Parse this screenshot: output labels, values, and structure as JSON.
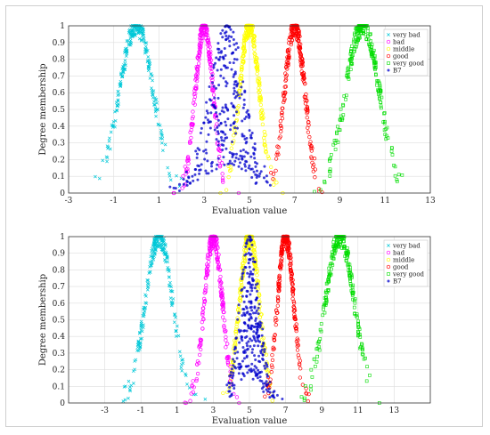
{
  "chart_data": [
    {
      "type": "scatter",
      "xlabel": "Evaluation value",
      "ylabel": "Degree membership",
      "xlim": [
        -3,
        13
      ],
      "ylim": [
        0,
        1
      ],
      "xticks": [
        "-3",
        "-1",
        "1",
        "3",
        "5",
        "7",
        "9",
        "11",
        "13"
      ],
      "yticks": [
        "0",
        "0.1",
        "0.2",
        "0.3",
        "0.4",
        "0.5",
        "0.6",
        "0.7",
        "0.8",
        "0.9",
        "1"
      ],
      "grid": true,
      "legend_position": "top-right",
      "series": [
        {
          "name": "very bad",
          "marker": "x",
          "color": "#00c8d8",
          "center": 0,
          "sigma": 0.75,
          "n": 230
        },
        {
          "name": "bad",
          "marker": "o",
          "color": "#ff00ff",
          "center": 3,
          "sigma": 0.4,
          "n": 230
        },
        {
          "name": "middle",
          "marker": "o",
          "color": "#ffff00",
          "center": 5,
          "sigma": 0.45,
          "n": 230
        },
        {
          "name": "good",
          "marker": "o",
          "color": "#ff0000",
          "center": 7,
          "sigma": 0.45,
          "n": 230
        },
        {
          "name": "very good",
          "marker": "square",
          "color": "#00dd00",
          "center": 10,
          "sigma": 0.75,
          "n": 230
        },
        {
          "name": "B7",
          "marker": "*",
          "color": "#0000cc",
          "center": 4,
          "sigma": 0.8,
          "n": 300
        }
      ]
    },
    {
      "type": "scatter",
      "xlabel": "Evaluation value",
      "ylabel": "Degree membership",
      "xlim": [
        -5,
        15
      ],
      "ylim": [
        0,
        1
      ],
      "xticks": [
        "-3",
        "-1",
        "1",
        "3",
        "5",
        "7",
        "9",
        "11",
        "13"
      ],
      "yticks": [
        "0",
        "0.1",
        "0.2",
        "0.3",
        "0.4",
        "0.5",
        "0.6",
        "0.7",
        "0.8",
        "0.9",
        "1"
      ],
      "grid": true,
      "legend_position": "top-right",
      "series": [
        {
          "name": "very bad",
          "marker": "x",
          "color": "#00c8d8",
          "center": 0,
          "sigma": 0.75,
          "n": 230
        },
        {
          "name": "bad",
          "marker": "o",
          "color": "#ff00ff",
          "center": 3,
          "sigma": 0.5,
          "n": 230
        },
        {
          "name": "middle",
          "marker": "o",
          "color": "#ffff00",
          "center": 5,
          "sigma": 0.55,
          "n": 230
        },
        {
          "name": "good",
          "marker": "o",
          "color": "#ff0000",
          "center": 7,
          "sigma": 0.45,
          "n": 230
        },
        {
          "name": "very good",
          "marker": "square",
          "color": "#00dd00",
          "center": 10,
          "sigma": 0.8,
          "n": 230
        },
        {
          "name": "B7",
          "marker": "*",
          "color": "#0000cc",
          "center": 5,
          "sigma": 0.55,
          "n": 300
        }
      ]
    }
  ]
}
